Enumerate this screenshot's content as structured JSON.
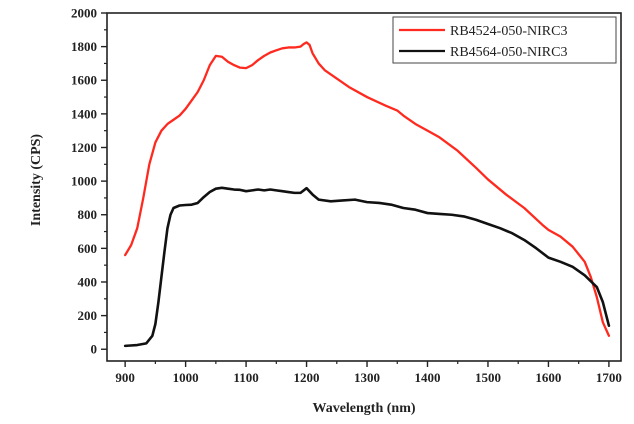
{
  "chart_data": {
    "type": "line",
    "xlabel": "Wavelength (nm)",
    "ylabel": "Intensity (CPS)",
    "xlim": [
      870,
      1720
    ],
    "ylim": [
      -70,
      2000
    ],
    "x_ticks": [
      900,
      1000,
      1100,
      1200,
      1300,
      1400,
      1500,
      1600,
      1700
    ],
    "y_ticks": [
      0,
      200,
      400,
      600,
      800,
      1000,
      1200,
      1400,
      1600,
      1800,
      2000
    ],
    "x_tick_labels": [
      "900",
      "1000",
      "1100",
      "1200",
      "1300",
      "1400",
      "1500",
      "1600",
      "1700"
    ],
    "y_tick_labels": [
      "0",
      "200",
      "400",
      "600",
      "800",
      "1000",
      "1200",
      "1400",
      "1600",
      "1800",
      "2000"
    ],
    "legend_position": "top-right",
    "grid": false,
    "series": [
      {
        "name": "RB4524-050-NIRC3",
        "color": "#ff2a1f",
        "points": [
          [
            900,
            560
          ],
          [
            910,
            620
          ],
          [
            920,
            720
          ],
          [
            930,
            900
          ],
          [
            940,
            1100
          ],
          [
            950,
            1230
          ],
          [
            960,
            1300
          ],
          [
            970,
            1340
          ],
          [
            980,
            1365
          ],
          [
            990,
            1390
          ],
          [
            1000,
            1430
          ],
          [
            1010,
            1480
          ],
          [
            1020,
            1530
          ],
          [
            1030,
            1600
          ],
          [
            1040,
            1690
          ],
          [
            1050,
            1745
          ],
          [
            1060,
            1740
          ],
          [
            1070,
            1710
          ],
          [
            1080,
            1690
          ],
          [
            1090,
            1675
          ],
          [
            1100,
            1672
          ],
          [
            1110,
            1690
          ],
          [
            1120,
            1720
          ],
          [
            1130,
            1745
          ],
          [
            1140,
            1765
          ],
          [
            1150,
            1778
          ],
          [
            1160,
            1790
          ],
          [
            1170,
            1795
          ],
          [
            1180,
            1795
          ],
          [
            1190,
            1800
          ],
          [
            1195,
            1815
          ],
          [
            1200,
            1825
          ],
          [
            1205,
            1810
          ],
          [
            1210,
            1760
          ],
          [
            1220,
            1700
          ],
          [
            1230,
            1660
          ],
          [
            1250,
            1610
          ],
          [
            1270,
            1560
          ],
          [
            1300,
            1500
          ],
          [
            1330,
            1450
          ],
          [
            1350,
            1420
          ],
          [
            1360,
            1390
          ],
          [
            1380,
            1340
          ],
          [
            1400,
            1300
          ],
          [
            1420,
            1260
          ],
          [
            1450,
            1180
          ],
          [
            1480,
            1080
          ],
          [
            1500,
            1010
          ],
          [
            1530,
            920
          ],
          [
            1560,
            840
          ],
          [
            1590,
            740
          ],
          [
            1600,
            710
          ],
          [
            1620,
            670
          ],
          [
            1640,
            610
          ],
          [
            1660,
            520
          ],
          [
            1670,
            430
          ],
          [
            1680,
            310
          ],
          [
            1690,
            160
          ],
          [
            1700,
            80
          ]
        ]
      },
      {
        "name": "RB4564-050-NIRC3",
        "color": "#111111",
        "points": [
          [
            900,
            20
          ],
          [
            920,
            25
          ],
          [
            935,
            35
          ],
          [
            945,
            80
          ],
          [
            950,
            150
          ],
          [
            955,
            280
          ],
          [
            960,
            430
          ],
          [
            965,
            580
          ],
          [
            970,
            720
          ],
          [
            975,
            800
          ],
          [
            980,
            840
          ],
          [
            990,
            855
          ],
          [
            1000,
            858
          ],
          [
            1010,
            860
          ],
          [
            1020,
            870
          ],
          [
            1030,
            905
          ],
          [
            1040,
            935
          ],
          [
            1050,
            955
          ],
          [
            1060,
            960
          ],
          [
            1070,
            955
          ],
          [
            1080,
            950
          ],
          [
            1090,
            948
          ],
          [
            1100,
            940
          ],
          [
            1110,
            945
          ],
          [
            1120,
            950
          ],
          [
            1130,
            945
          ],
          [
            1140,
            950
          ],
          [
            1150,
            945
          ],
          [
            1160,
            940
          ],
          [
            1170,
            935
          ],
          [
            1180,
            930
          ],
          [
            1190,
            930
          ],
          [
            1200,
            958
          ],
          [
            1210,
            920
          ],
          [
            1220,
            890
          ],
          [
            1240,
            880
          ],
          [
            1260,
            885
          ],
          [
            1280,
            890
          ],
          [
            1300,
            875
          ],
          [
            1320,
            870
          ],
          [
            1340,
            860
          ],
          [
            1360,
            840
          ],
          [
            1380,
            830
          ],
          [
            1400,
            810
          ],
          [
            1420,
            805
          ],
          [
            1440,
            800
          ],
          [
            1460,
            790
          ],
          [
            1480,
            770
          ],
          [
            1500,
            745
          ],
          [
            1520,
            720
          ],
          [
            1540,
            690
          ],
          [
            1560,
            650
          ],
          [
            1580,
            600
          ],
          [
            1600,
            545
          ],
          [
            1620,
            520
          ],
          [
            1640,
            490
          ],
          [
            1660,
            440
          ],
          [
            1680,
            370
          ],
          [
            1690,
            280
          ],
          [
            1700,
            140
          ]
        ]
      }
    ]
  }
}
